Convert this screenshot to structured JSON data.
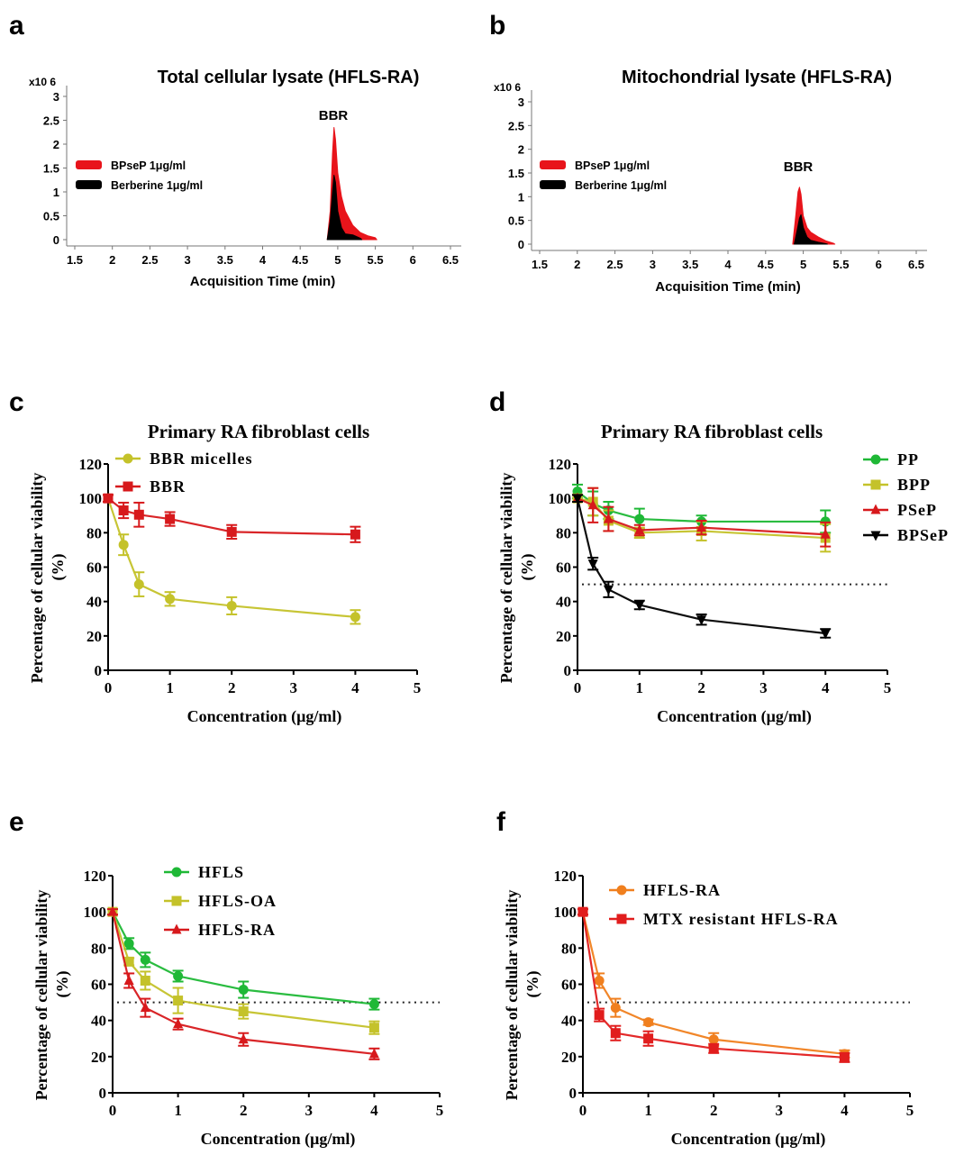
{
  "panel_labels": [
    "a",
    "b",
    "c",
    "d",
    "e",
    "f"
  ],
  "chart_data": [
    {
      "id": "a",
      "type": "area",
      "title": "Total cellular lysate (HFLS-RA)",
      "xlabel": "Acquisition Time (min)",
      "ylabel": "",
      "y_multiplier_label": "x10 6",
      "xlim": [
        1.5,
        6.5
      ],
      "ylim": [
        0,
        3
      ],
      "xticks": [
        "1.5",
        "2",
        "2.5",
        "3",
        "3.5",
        "4",
        "4.5",
        "5",
        "5.5",
        "6",
        "6.5"
      ],
      "yticks": [
        "0",
        "0.5",
        "1",
        "1.5",
        "2",
        "2.5",
        "3"
      ],
      "annotation": "BBR",
      "legend_position": "left",
      "series": [
        {
          "name": "BPseP  1μg/ml",
          "color": "#e8141b",
          "x": [
            4.86,
            4.9,
            4.93,
            4.95,
            4.97,
            5.0,
            5.05,
            5.1,
            5.2,
            5.3,
            5.4,
            5.5,
            5.52
          ],
          "y": [
            0,
            0.6,
            1.8,
            2.35,
            2.1,
            1.4,
            0.9,
            0.6,
            0.3,
            0.15,
            0.08,
            0.04,
            0
          ]
        },
        {
          "name": "Berberine 1μg/ml",
          "color": "#000000",
          "x": [
            4.86,
            4.9,
            4.93,
            4.95,
            4.97,
            5.0,
            5.05,
            5.1,
            5.2,
            5.3,
            5.32
          ],
          "y": [
            0,
            0.4,
            1.0,
            1.35,
            1.2,
            0.6,
            0.25,
            0.12,
            0.1,
            0.03,
            0
          ]
        }
      ]
    },
    {
      "id": "b",
      "type": "area",
      "title": "Mitochondrial lysate (HFLS-RA)",
      "xlabel": "Acquisition Time (min)",
      "ylabel": "",
      "y_multiplier_label": "x10 6",
      "xlim": [
        1.5,
        6.5
      ],
      "ylim": [
        0,
        3
      ],
      "xticks": [
        "1.5",
        "2",
        "2.5",
        "3",
        "3.5",
        "4",
        "4.5",
        "5",
        "5.5",
        "6",
        "6.5"
      ],
      "yticks": [
        "0",
        "0.5",
        "1",
        "1.5",
        "2",
        "2.5",
        "3"
      ],
      "annotation": "BBR",
      "legend_position": "left",
      "series": [
        {
          "name": "BPseP 1μg/ml",
          "color": "#e8141b",
          "x": [
            4.86,
            4.9,
            4.93,
            4.95,
            4.97,
            5.0,
            5.05,
            5.1,
            5.2,
            5.3,
            5.4,
            5.42
          ],
          "y": [
            0,
            0.6,
            1.1,
            1.2,
            1.05,
            0.6,
            0.35,
            0.25,
            0.15,
            0.07,
            0.02,
            0
          ]
        },
        {
          "name": "Berberine 1μg/ml",
          "color": "#000000",
          "x": [
            4.88,
            4.92,
            4.95,
            4.97,
            5.0,
            5.05,
            5.1,
            5.2,
            5.3,
            5.32
          ],
          "y": [
            0,
            0.3,
            0.55,
            0.62,
            0.35,
            0.15,
            0.08,
            0.04,
            0.01,
            0
          ]
        }
      ]
    },
    {
      "id": "c",
      "type": "line",
      "title": "Primary RA fibroblast cells",
      "xlabel": "Concentration (μg/ml)",
      "ylabel": "Percentage of cellular viability\n(%)",
      "ylabel_lines": [
        "Percentage of cellular viability",
        "(%)"
      ],
      "xlim": [
        0,
        5
      ],
      "ylim": [
        0,
        120
      ],
      "xticks": [
        "0",
        "1",
        "2",
        "3",
        "4",
        "5"
      ],
      "yticks": [
        "0",
        "20",
        "40",
        "60",
        "80",
        "100",
        "120"
      ],
      "reference_line": null,
      "legend_position": "top-left",
      "x": [
        0,
        0.25,
        0.5,
        1,
        2,
        4
      ],
      "series": [
        {
          "name": "BBR micelles",
          "color": "#c4c22a",
          "marker": "circle",
          "values": [
            100,
            73,
            50,
            41.5,
            37.5,
            31
          ],
          "errors": [
            2,
            6,
            7,
            4,
            5,
            4
          ]
        },
        {
          "name": "BBR",
          "color": "#d7191c",
          "marker": "square",
          "values": [
            100,
            93,
            90.5,
            88,
            80.5,
            79
          ],
          "errors": [
            2,
            4.5,
            7,
            4,
            4,
            4.5
          ]
        }
      ]
    },
    {
      "id": "d",
      "type": "line",
      "title": "Primary RA fibroblast cells",
      "xlabel": "Concentration (μg/ml)",
      "ylabel_lines": [
        "Percentage of cellular viability",
        "(%)"
      ],
      "xlim": [
        0,
        5
      ],
      "ylim": [
        0,
        120
      ],
      "xticks": [
        "0",
        "1",
        "2",
        "3",
        "4",
        "5"
      ],
      "yticks": [
        "0",
        "20",
        "40",
        "60",
        "80",
        "100",
        "120"
      ],
      "reference_line": 50,
      "legend_position": "top-right",
      "x": [
        0,
        0.25,
        0.5,
        1,
        2,
        4
      ],
      "series": [
        {
          "name": "PP",
          "color": "#1fb836",
          "marker": "circle",
          "values": [
            104,
            97,
            93,
            88,
            86.5,
            86.5
          ],
          "errors": [
            4,
            7,
            5,
            6,
            3.5,
            6.5
          ]
        },
        {
          "name": "BPP",
          "color": "#c4c22a",
          "marker": "square",
          "values": [
            100,
            98,
            87,
            80,
            81,
            77
          ],
          "errors": [
            2,
            8,
            6,
            3,
            5.5,
            8
          ]
        },
        {
          "name": "PSeP",
          "color": "#d7191c",
          "marker": "triangle-up",
          "values": [
            100,
            96,
            88,
            81.5,
            83,
            79
          ],
          "errors": [
            2,
            10,
            7,
            3,
            4,
            7
          ]
        },
        {
          "name": "BPSeP",
          "color": "#000000",
          "marker": "triangle-down",
          "values": [
            100,
            62,
            47,
            38,
            29.5,
            21.5
          ],
          "errors": [
            2,
            3.5,
            4.5,
            2.5,
            3,
            2.5
          ]
        }
      ]
    },
    {
      "id": "e",
      "type": "line",
      "title": "",
      "xlabel": "Concentration (μg/ml)",
      "ylabel_lines": [
        "Percentage of cellular viability",
        "(%)"
      ],
      "xlim": [
        0,
        5
      ],
      "ylim": [
        0,
        120
      ],
      "xticks": [
        "0",
        "1",
        "2",
        "3",
        "4",
        "5"
      ],
      "yticks": [
        "0",
        "20",
        "40",
        "60",
        "80",
        "100",
        "120"
      ],
      "reference_line": 50,
      "legend_position": "top-left",
      "x": [
        0,
        0.25,
        0.5,
        1,
        2,
        4
      ],
      "series": [
        {
          "name": "HFLS",
          "color": "#1fb836",
          "marker": "circle",
          "values": [
            100,
            82.5,
            73.5,
            64.5,
            57,
            49
          ],
          "errors": [
            1.5,
            3,
            4,
            3,
            4.5,
            3
          ]
        },
        {
          "name": "HFLS-OA",
          "color": "#c4c22a",
          "marker": "square",
          "values": [
            100,
            72.5,
            62,
            51,
            45,
            36
          ],
          "errors": [
            1.5,
            2,
            5,
            7,
            4,
            3.5
          ]
        },
        {
          "name": "HFLS-RA",
          "color": "#d7191c",
          "marker": "triangle-up",
          "values": [
            100,
            62,
            47,
            38,
            29.5,
            21.5
          ],
          "errors": [
            1.5,
            4,
            5,
            3,
            3.5,
            3
          ]
        }
      ]
    },
    {
      "id": "f",
      "type": "line",
      "title": "",
      "xlabel": "Concentration (μg/ml)",
      "ylabel_lines": [
        "Percentage of cellular viability",
        "(%)"
      ],
      "xlim": [
        0,
        5
      ],
      "ylim": [
        0,
        120
      ],
      "xticks": [
        "0",
        "1",
        "2",
        "3",
        "4",
        "5"
      ],
      "yticks": [
        "0",
        "20",
        "40",
        "60",
        "80",
        "100",
        "120"
      ],
      "reference_line": 50,
      "legend_position": "top-left",
      "x": [
        0,
        0.25,
        0.5,
        1,
        2,
        4
      ],
      "series": [
        {
          "name": "HFLS-RA",
          "color": "#f07f1e",
          "marker": "circle",
          "values": [
            100,
            62,
            47,
            39,
            29.5,
            21.5
          ],
          "errors": [
            1.5,
            4,
            5,
            1.5,
            3.5,
            2
          ]
        },
        {
          "name": "MTX resistant HFLS-RA",
          "color": "#e11d1d",
          "marker": "square",
          "values": [
            100,
            43,
            33,
            30,
            24.5,
            19.5
          ],
          "errors": [
            1.5,
            3.5,
            4,
            4,
            2.5,
            2.5
          ]
        }
      ]
    }
  ]
}
